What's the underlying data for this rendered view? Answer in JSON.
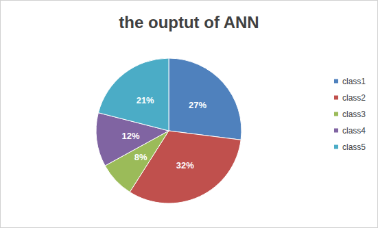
{
  "chart_data": {
    "type": "pie",
    "title": "the ouptut of ANN",
    "categories": [
      "class1",
      "class2",
      "class3",
      "class4",
      "class5"
    ],
    "values": [
      27,
      32,
      8,
      12,
      21
    ],
    "value_labels": [
      "27%",
      "32%",
      "8%",
      "12%",
      "21%"
    ],
    "colors": [
      "#4f81bd",
      "#c0504d",
      "#9bbb59",
      "#8064a2",
      "#4bacc6"
    ],
    "data_labels": true,
    "legend": "right"
  }
}
